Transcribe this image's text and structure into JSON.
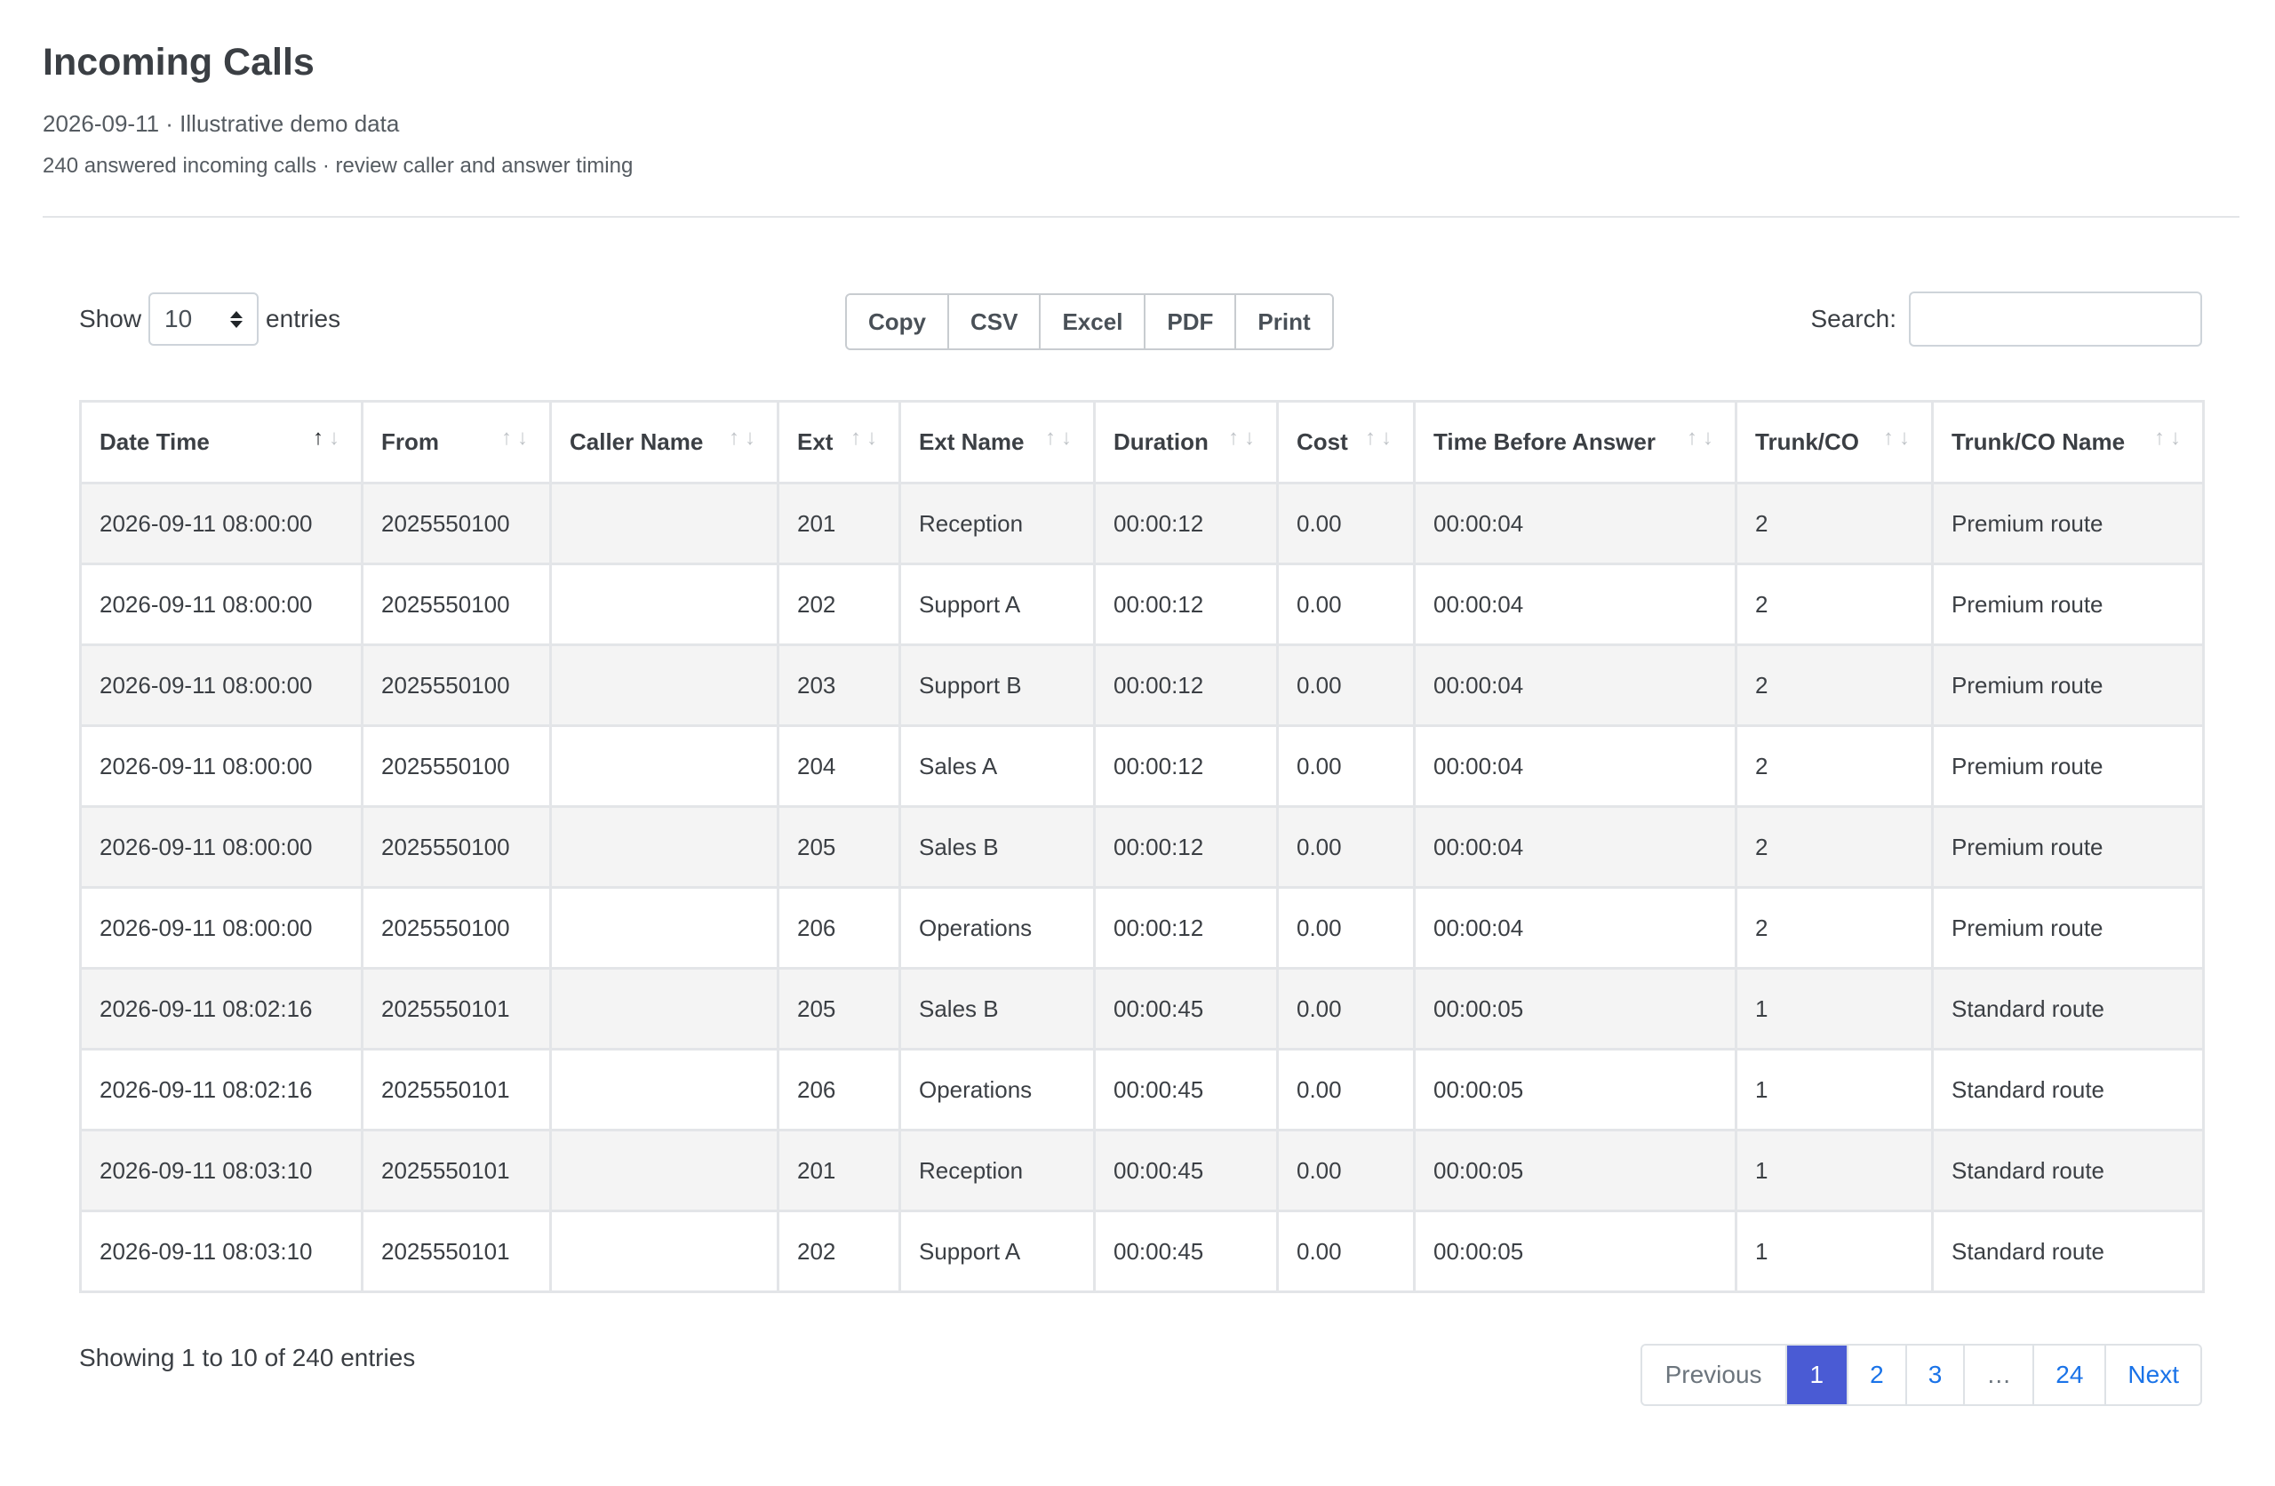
{
  "header": {
    "title": "Incoming Calls",
    "subtitle": "2026-09-11 · Illustrative demo data",
    "summary": "240 answered incoming calls · review caller and answer timing"
  },
  "controls": {
    "show_label": "Show",
    "entries_value": "10",
    "entries_label": "entries",
    "buttons": [
      "Copy",
      "CSV",
      "Excel",
      "PDF",
      "Print"
    ],
    "search_label": "Search:",
    "search_value": ""
  },
  "table": {
    "columns": [
      "Date Time",
      "From",
      "Caller Name",
      "Ext",
      "Ext Name",
      "Duration",
      "Cost",
      "Time Before Answer",
      "Trunk/CO",
      "Trunk/CO Name"
    ],
    "sorted_column": "Date Time",
    "sort_direction": "ascending",
    "rows": [
      [
        "2026-09-11 08:00:00",
        "2025550100",
        "",
        "201",
        "Reception",
        "00:00:12",
        "0.00",
        "00:00:04",
        "2",
        "Premium route"
      ],
      [
        "2026-09-11 08:00:00",
        "2025550100",
        "",
        "202",
        "Support A",
        "00:00:12",
        "0.00",
        "00:00:04",
        "2",
        "Premium route"
      ],
      [
        "2026-09-11 08:00:00",
        "2025550100",
        "",
        "203",
        "Support B",
        "00:00:12",
        "0.00",
        "00:00:04",
        "2",
        "Premium route"
      ],
      [
        "2026-09-11 08:00:00",
        "2025550100",
        "",
        "204",
        "Sales A",
        "00:00:12",
        "0.00",
        "00:00:04",
        "2",
        "Premium route"
      ],
      [
        "2026-09-11 08:00:00",
        "2025550100",
        "",
        "205",
        "Sales B",
        "00:00:12",
        "0.00",
        "00:00:04",
        "2",
        "Premium route"
      ],
      [
        "2026-09-11 08:00:00",
        "2025550100",
        "",
        "206",
        "Operations",
        "00:00:12",
        "0.00",
        "00:00:04",
        "2",
        "Premium route"
      ],
      [
        "2026-09-11 08:02:16",
        "2025550101",
        "",
        "205",
        "Sales B",
        "00:00:45",
        "0.00",
        "00:00:05",
        "1",
        "Standard route"
      ],
      [
        "2026-09-11 08:02:16",
        "2025550101",
        "",
        "206",
        "Operations",
        "00:00:45",
        "0.00",
        "00:00:05",
        "1",
        "Standard route"
      ],
      [
        "2026-09-11 08:03:10",
        "2025550101",
        "",
        "201",
        "Reception",
        "00:00:45",
        "0.00",
        "00:00:05",
        "1",
        "Standard route"
      ],
      [
        "2026-09-11 08:03:10",
        "2025550101",
        "",
        "202",
        "Support A",
        "00:00:45",
        "0.00",
        "00:00:05",
        "1",
        "Standard route"
      ]
    ]
  },
  "footer": {
    "info": "Showing 1 to 10 of 240 entries",
    "pagination": {
      "previous": "Previous",
      "pages": [
        "1",
        "2",
        "3",
        "…",
        "24"
      ],
      "current": "1",
      "next": "Next"
    }
  },
  "colors": {
    "active_page": "#4a5bd4",
    "link": "#1a73e8",
    "striped_row": "#f4f4f4"
  }
}
